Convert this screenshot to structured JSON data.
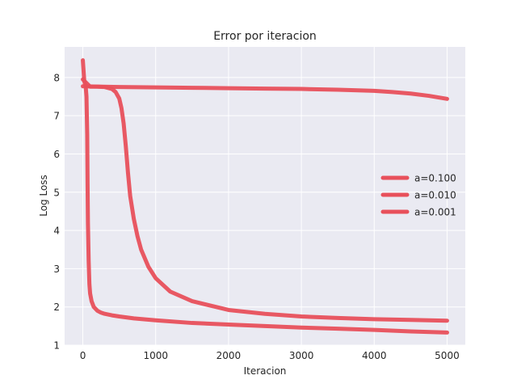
{
  "chart_data": {
    "type": "line",
    "title": "Error por iteracion",
    "xlabel": "Iteracion",
    "ylabel": "Log Loss",
    "xlim": [
      -250,
      5250
    ],
    "ylim": [
      1,
      8.8
    ],
    "xticks": [
      0,
      1000,
      2000,
      3000,
      4000,
      5000
    ],
    "yticks": [
      1,
      2,
      3,
      4,
      5,
      6,
      7,
      8
    ],
    "grid": true,
    "legend_position": "right",
    "line_color": "#e8505b",
    "background_color": "#eaeaf2",
    "series": [
      {
        "name": "a=0.100",
        "x": [
          0,
          20,
          40,
          50,
          60,
          65,
          70,
          80,
          90,
          100,
          120,
          150,
          200,
          250,
          300,
          400,
          500,
          700,
          1000,
          1500,
          2000,
          2500,
          3000,
          3500,
          4000,
          4500,
          5000
        ],
        "y": [
          8.45,
          7.9,
          7.75,
          7.5,
          6.5,
          5.2,
          4.2,
          3.2,
          2.6,
          2.35,
          2.15,
          2.0,
          1.9,
          1.85,
          1.82,
          1.78,
          1.75,
          1.7,
          1.65,
          1.58,
          1.54,
          1.5,
          1.46,
          1.43,
          1.4,
          1.36,
          1.33
        ]
      },
      {
        "name": "a=0.010",
        "x": [
          0,
          100,
          200,
          300,
          400,
          450,
          500,
          530,
          560,
          590,
          620,
          650,
          700,
          750,
          800,
          900,
          1000,
          1200,
          1500,
          2000,
          2500,
          3000,
          3500,
          4000,
          4500,
          5000
        ],
        "y": [
          7.95,
          7.76,
          7.76,
          7.75,
          7.7,
          7.62,
          7.45,
          7.2,
          6.8,
          6.2,
          5.5,
          4.9,
          4.3,
          3.85,
          3.5,
          3.05,
          2.75,
          2.4,
          2.15,
          1.92,
          1.82,
          1.75,
          1.71,
          1.68,
          1.66,
          1.64
        ]
      },
      {
        "name": "a=0.001",
        "x": [
          0,
          500,
          1000,
          1500,
          2000,
          2500,
          3000,
          3500,
          4000,
          4250,
          4500,
          4750,
          5000
        ],
        "y": [
          7.77,
          7.75,
          7.74,
          7.73,
          7.72,
          7.71,
          7.7,
          7.68,
          7.65,
          7.62,
          7.58,
          7.52,
          7.44
        ]
      }
    ]
  }
}
